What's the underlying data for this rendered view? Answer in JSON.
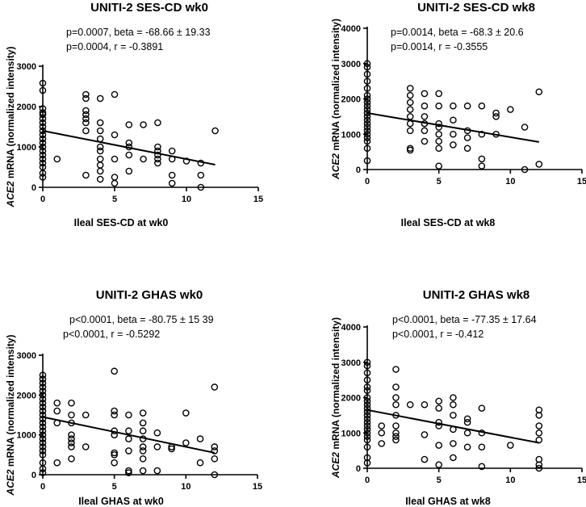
{
  "chart_data": [
    {
      "type": "scatter",
      "title": "UNITI-2 SES-CD wk0",
      "stat_line1": "p=0.0007, beta = -68.66 ± 19.33",
      "stat_line2": "p=0.0004, r = -0.3891",
      "xlabel": "Ileal SES-CD at wk0",
      "ylabel_gene": "ACE2",
      "ylabel_rest": " mRNA (normalized intensity)",
      "xlim": [
        0,
        15
      ],
      "ylim": [
        0,
        3000
      ],
      "xticks": [
        0,
        5,
        10,
        15
      ],
      "yticks": [
        0,
        1000,
        2000,
        3000
      ],
      "xtick_labels": [
        "0",
        "5",
        "10",
        "15"
      ],
      "ytick_labels": [
        "0",
        "1000",
        "2000",
        "3000"
      ],
      "regression": {
        "x": [
          0,
          12
        ],
        "y": [
          1400,
          560
        ]
      },
      "points": [
        [
          0,
          2580
        ],
        [
          0,
          2400
        ],
        [
          0,
          1950
        ],
        [
          0,
          1850
        ],
        [
          0,
          1800
        ],
        [
          0,
          1700
        ],
        [
          0,
          1600
        ],
        [
          0,
          1500
        ],
        [
          0,
          1400
        ],
        [
          0,
          1300
        ],
        [
          0,
          1200
        ],
        [
          0,
          1100
        ],
        [
          0,
          1000
        ],
        [
          0,
          900
        ],
        [
          0,
          800
        ],
        [
          0,
          700
        ],
        [
          0,
          600
        ],
        [
          0,
          500
        ],
        [
          0,
          350
        ],
        [
          0,
          250
        ],
        [
          1,
          700
        ],
        [
          3,
          2300
        ],
        [
          3,
          2200
        ],
        [
          3,
          1900
        ],
        [
          3,
          1800
        ],
        [
          3,
          1700
        ],
        [
          3,
          1600
        ],
        [
          3,
          1400
        ],
        [
          3,
          300
        ],
        [
          4,
          2200
        ],
        [
          4,
          1600
        ],
        [
          4,
          1400
        ],
        [
          4,
          1200
        ],
        [
          4,
          1000
        ],
        [
          4,
          900
        ],
        [
          4,
          700
        ],
        [
          4,
          550
        ],
        [
          4,
          400
        ],
        [
          4,
          200
        ],
        [
          5,
          2300
        ],
        [
          5,
          1300
        ],
        [
          5,
          700
        ],
        [
          5,
          250
        ],
        [
          5,
          100
        ],
        [
          6,
          1550
        ],
        [
          6,
          1100
        ],
        [
          6,
          1000
        ],
        [
          6,
          800
        ],
        [
          6,
          400
        ],
        [
          7,
          1550
        ],
        [
          7,
          700
        ],
        [
          8,
          1600
        ],
        [
          8,
          1000
        ],
        [
          8,
          900
        ],
        [
          8,
          800
        ],
        [
          8,
          700
        ],
        [
          8,
          600
        ],
        [
          9,
          900
        ],
        [
          9,
          700
        ],
        [
          9,
          300
        ],
        [
          9,
          100
        ],
        [
          10,
          650
        ],
        [
          11,
          600
        ],
        [
          11,
          300
        ],
        [
          11,
          0
        ],
        [
          12,
          1400
        ]
      ]
    },
    {
      "type": "scatter",
      "title": "UNITI-2 SES-CD wk8",
      "stat_line1": "p=0.0014, beta = -68.3 ± 20.6",
      "stat_line2": "p=0.0014, r = -0.3555",
      "xlabel": "Ileal SES-CD at wk8",
      "ylabel_gene": "ACE2",
      "ylabel_rest": " mRNA (normalized intensity)",
      "xlim": [
        0,
        15
      ],
      "ylim": [
        0,
        4000
      ],
      "xticks": [
        0,
        5,
        10,
        15
      ],
      "yticks": [
        0,
        1000,
        2000,
        3000,
        4000
      ],
      "xtick_labels": [
        "0",
        "5",
        "10",
        "15"
      ],
      "ytick_labels": [
        "0",
        "1000",
        "2000",
        "3000",
        "4000"
      ],
      "regression": {
        "x": [
          0,
          12
        ],
        "y": [
          1600,
          780
        ]
      },
      "points": [
        [
          0,
          3000
        ],
        [
          0,
          2900
        ],
        [
          0,
          2700
        ],
        [
          0,
          2500
        ],
        [
          0,
          2300
        ],
        [
          0,
          2100
        ],
        [
          0,
          2000
        ],
        [
          0,
          1900
        ],
        [
          0,
          1800
        ],
        [
          0,
          1700
        ],
        [
          0,
          1600
        ],
        [
          0,
          1500
        ],
        [
          0,
          1400
        ],
        [
          0,
          1300
        ],
        [
          0,
          1200
        ],
        [
          0,
          1100
        ],
        [
          0,
          1000
        ],
        [
          0,
          900
        ],
        [
          0,
          800
        ],
        [
          0,
          600
        ],
        [
          0,
          250
        ],
        [
          3,
          2300
        ],
        [
          3,
          2100
        ],
        [
          3,
          1900
        ],
        [
          3,
          1700
        ],
        [
          3,
          1500
        ],
        [
          3,
          1300
        ],
        [
          3,
          1100
        ],
        [
          3,
          600
        ],
        [
          3,
          550
        ],
        [
          4,
          2150
        ],
        [
          4,
          1800
        ],
        [
          4,
          1500
        ],
        [
          4,
          1300
        ],
        [
          4,
          1100
        ],
        [
          4,
          800
        ],
        [
          5,
          2150
        ],
        [
          5,
          1800
        ],
        [
          5,
          1300
        ],
        [
          5,
          1200
        ],
        [
          5,
          1000
        ],
        [
          5,
          800
        ],
        [
          5,
          600
        ],
        [
          5,
          100
        ],
        [
          6,
          1800
        ],
        [
          6,
          1400
        ],
        [
          6,
          1000
        ],
        [
          6,
          700
        ],
        [
          7,
          1800
        ],
        [
          7,
          1100
        ],
        [
          7,
          900
        ],
        [
          7,
          600
        ],
        [
          8,
          1800
        ],
        [
          8,
          1000
        ],
        [
          8,
          300
        ],
        [
          8,
          100
        ],
        [
          9,
          1600
        ],
        [
          9,
          1500
        ],
        [
          9,
          1000
        ],
        [
          10,
          1700
        ],
        [
          11,
          1200
        ],
        [
          11,
          0
        ],
        [
          12,
          2200
        ],
        [
          12,
          150
        ]
      ]
    },
    {
      "type": "scatter",
      "title": "UNITI-2 GHAS wk0",
      "stat_line1": "p<0.0001, beta = -80.75 ± 15 39",
      "stat_line2": "p<0.0001, r = -0.5292",
      "xlabel": "Ileal GHAS at wk0",
      "ylabel_gene": "ACE2",
      "ylabel_rest": " mRNA (normalized intensity)",
      "xlim": [
        0,
        15
      ],
      "ylim": [
        0,
        3000
      ],
      "xticks": [
        0,
        5,
        10,
        15
      ],
      "yticks": [
        0,
        1000,
        2000,
        3000
      ],
      "xtick_labels": [
        "0",
        "5",
        "10",
        "15"
      ],
      "ytick_labels": [
        "0",
        "1000",
        "2000",
        "3000"
      ],
      "regression": {
        "x": [
          0,
          12
        ],
        "y": [
          1450,
          550
        ]
      },
      "points": [
        [
          0,
          2500
        ],
        [
          0,
          2400
        ],
        [
          0,
          2300
        ],
        [
          0,
          2200
        ],
        [
          0,
          2100
        ],
        [
          0,
          2000
        ],
        [
          0,
          1900
        ],
        [
          0,
          1800
        ],
        [
          0,
          1700
        ],
        [
          0,
          1600
        ],
        [
          0,
          1500
        ],
        [
          0,
          1400
        ],
        [
          0,
          1300
        ],
        [
          0,
          1200
        ],
        [
          0,
          1100
        ],
        [
          0,
          1000
        ],
        [
          0,
          900
        ],
        [
          0,
          800
        ],
        [
          0,
          700
        ],
        [
          0,
          600
        ],
        [
          0,
          500
        ],
        [
          0,
          300
        ],
        [
          0,
          150
        ],
        [
          0,
          50
        ],
        [
          1,
          1800
        ],
        [
          1,
          1600
        ],
        [
          1,
          1300
        ],
        [
          1,
          300
        ],
        [
          2,
          1800
        ],
        [
          2,
          1500
        ],
        [
          2,
          1300
        ],
        [
          2,
          1000
        ],
        [
          2,
          900
        ],
        [
          2,
          800
        ],
        [
          2,
          700
        ],
        [
          2,
          400
        ],
        [
          3,
          1500
        ],
        [
          3,
          700
        ],
        [
          5,
          2600
        ],
        [
          5,
          1600
        ],
        [
          5,
          1500
        ],
        [
          5,
          1100
        ],
        [
          5,
          1000
        ],
        [
          5,
          550
        ],
        [
          5,
          500
        ],
        [
          5,
          300
        ],
        [
          6,
          1500
        ],
        [
          6,
          1100
        ],
        [
          6,
          900
        ],
        [
          6,
          600
        ],
        [
          6,
          100
        ],
        [
          6,
          50
        ],
        [
          7,
          1550
        ],
        [
          7,
          1300
        ],
        [
          7,
          1100
        ],
        [
          7,
          900
        ],
        [
          7,
          700
        ],
        [
          7,
          600
        ],
        [
          7,
          400
        ],
        [
          7,
          100
        ],
        [
          8,
          1050
        ],
        [
          8,
          700
        ],
        [
          8,
          100
        ],
        [
          9,
          700
        ],
        [
          9,
          650
        ],
        [
          10,
          1550
        ],
        [
          10,
          800
        ],
        [
          11,
          900
        ],
        [
          11,
          300
        ],
        [
          12,
          2200
        ],
        [
          12,
          700
        ],
        [
          12,
          600
        ],
        [
          12,
          400
        ],
        [
          12,
          0
        ]
      ]
    },
    {
      "type": "scatter",
      "title": "UNITI-2 GHAS wk8",
      "stat_line1": "p<0.0001, beta = -77.35 ± 17.64",
      "stat_line2": "p<0.0001, r = -0.412",
      "xlabel": "Ileal GHAS at wk8",
      "ylabel_gene": "ACE2",
      "ylabel_rest": " mRNA (normalized intensity)",
      "xlim": [
        0,
        15
      ],
      "ylim": [
        0,
        4000
      ],
      "xticks": [
        0,
        5,
        10,
        15
      ],
      "yticks": [
        0,
        1000,
        2000,
        3000,
        4000
      ],
      "xtick_labels": [
        "0",
        "5",
        "10",
        "15"
      ],
      "ytick_labels": [
        "0",
        "1000",
        "2000",
        "3000",
        "4000"
      ],
      "regression": {
        "x": [
          0,
          12
        ],
        "y": [
          1650,
          720
        ]
      },
      "points": [
        [
          0,
          3000
        ],
        [
          0,
          2900
        ],
        [
          0,
          2700
        ],
        [
          0,
          2500
        ],
        [
          0,
          2300
        ],
        [
          0,
          2200
        ],
        [
          0,
          2000
        ],
        [
          0,
          1900
        ],
        [
          0,
          1800
        ],
        [
          0,
          1700
        ],
        [
          0,
          1600
        ],
        [
          0,
          1500
        ],
        [
          0,
          1400
        ],
        [
          0,
          1300
        ],
        [
          0,
          1200
        ],
        [
          0,
          1100
        ],
        [
          0,
          1000
        ],
        [
          0,
          900
        ],
        [
          0,
          800
        ],
        [
          0,
          600
        ],
        [
          0,
          300
        ],
        [
          0,
          150
        ],
        [
          1,
          1200
        ],
        [
          1,
          1000
        ],
        [
          1,
          700
        ],
        [
          2,
          2800
        ],
        [
          2,
          2300
        ],
        [
          2,
          2000
        ],
        [
          2,
          1800
        ],
        [
          2,
          1500
        ],
        [
          2,
          1200
        ],
        [
          2,
          1000
        ],
        [
          2,
          900
        ],
        [
          2,
          800
        ],
        [
          3,
          1800
        ],
        [
          4,
          1800
        ],
        [
          4,
          950
        ],
        [
          4,
          250
        ],
        [
          5,
          1900
        ],
        [
          5,
          1700
        ],
        [
          5,
          1300
        ],
        [
          5,
          1200
        ],
        [
          5,
          650
        ],
        [
          5,
          100
        ],
        [
          6,
          2000
        ],
        [
          6,
          1800
        ],
        [
          6,
          1500
        ],
        [
          6,
          1100
        ],
        [
          6,
          700
        ],
        [
          6,
          300
        ],
        [
          7,
          1400
        ],
        [
          7,
          1300
        ],
        [
          7,
          1000
        ],
        [
          7,
          600
        ],
        [
          8,
          1700
        ],
        [
          8,
          1000
        ],
        [
          8,
          600
        ],
        [
          8,
          50
        ],
        [
          10,
          650
        ],
        [
          12,
          1650
        ],
        [
          12,
          1500
        ],
        [
          12,
          1200
        ],
        [
          12,
          1000
        ],
        [
          12,
          800
        ],
        [
          12,
          250
        ],
        [
          12,
          100
        ],
        [
          12,
          0
        ]
      ]
    }
  ]
}
